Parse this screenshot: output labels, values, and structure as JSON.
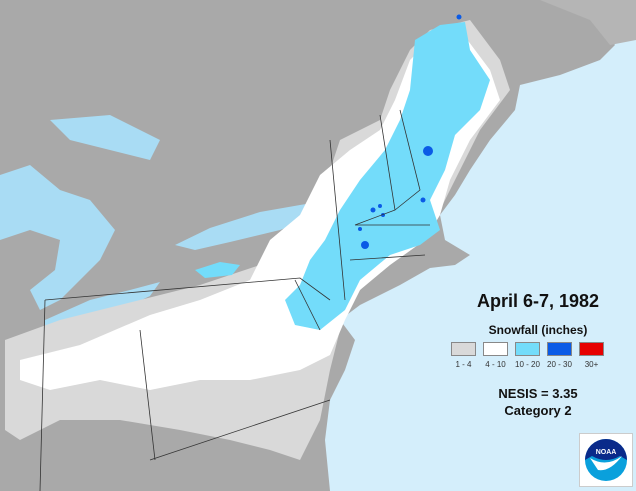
{
  "title": "April 6-7, 1982",
  "legend": {
    "title": "Snowfall (inches)",
    "items": [
      {
        "label": "1 - 4",
        "color": "#d9d9d9"
      },
      {
        "label": "4 - 10",
        "color": "#ffffff"
      },
      {
        "label": "10 - 20",
        "color": "#73dcfa"
      },
      {
        "label": "20 - 30",
        "color": "#0a5be6"
      },
      {
        "label": "30+",
        "color": "#e60000"
      }
    ]
  },
  "nesis": "NESIS = 3.35",
  "category": "Category 2",
  "logo_text": "NOAA",
  "colors": {
    "ocean": "#d4eefb",
    "land": "#a6a6a6",
    "lakes": "#a9dcf4"
  }
}
